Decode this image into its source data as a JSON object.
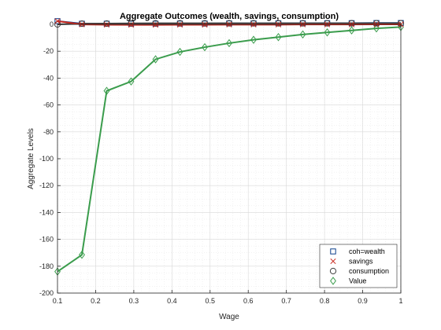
{
  "chart_data": {
    "type": "line",
    "title": "Aggregate Outcomes (wealth, savings, consumption)",
    "xlabel": "Wage",
    "ylabel": "Aggregate Levels",
    "xlim": [
      0.1,
      1
    ],
    "ylim": [
      -200,
      0
    ],
    "xticks": [
      0.1,
      0.2,
      0.3,
      0.4,
      0.5,
      0.6,
      0.7,
      0.8,
      0.9,
      1
    ],
    "xtick_labels": [
      "0.1",
      "0.2",
      "0.3",
      "0.4",
      "0.5",
      "0.6",
      "0.7",
      "0.8",
      "0.9",
      "1"
    ],
    "yticks": [
      0,
      -20,
      -40,
      -60,
      -80,
      -100,
      -120,
      -140,
      -160,
      -180,
      -200
    ],
    "ytick_labels": [
      "0",
      "-20",
      "-40",
      "-60",
      "-80",
      "-100",
      "-120",
      "-140",
      "-160",
      "-180",
      "-200"
    ],
    "grid": true,
    "legend_position": "bottom-right",
    "x": [
      0.1,
      0.164,
      0.229,
      0.293,
      0.357,
      0.421,
      0.486,
      0.55,
      0.614,
      0.679,
      0.743,
      0.807,
      0.871,
      0.936,
      1.0
    ],
    "series": [
      {
        "name": "coh=wealth",
        "marker": "square",
        "color": "#0b3f8c",
        "values": [
          2.4,
          0.5,
          0.5,
          0.5,
          0.5,
          0.6,
          0.6,
          0.7,
          0.7,
          0.8,
          0.8,
          0.9,
          0.9,
          1.0,
          1.0
        ]
      },
      {
        "name": "savings",
        "marker": "x",
        "color": "#c8281e",
        "values": [
          2.4,
          -0.1,
          -0.3,
          -0.4,
          -0.4,
          -0.3,
          -0.3,
          -0.2,
          -0.2,
          -0.2,
          -0.1,
          -0.1,
          -0.1,
          0.0,
          0.0
        ]
      },
      {
        "name": "consumption",
        "marker": "circle",
        "color": "#404040",
        "values": [
          0.0,
          0.5,
          0.6,
          0.7,
          0.8,
          0.8,
          0.8,
          0.8,
          0.8,
          0.8,
          0.8,
          0.8,
          0.8,
          0.8,
          0.8
        ]
      },
      {
        "name": "Value",
        "marker": "diamond",
        "color": "#3a9c4c",
        "values": [
          -184,
          -171.5,
          -49.5,
          -42.5,
          -26,
          -20.5,
          -17,
          -14,
          -11.5,
          -9.5,
          -7.5,
          -6,
          -4.5,
          -3,
          -2
        ]
      }
    ]
  }
}
